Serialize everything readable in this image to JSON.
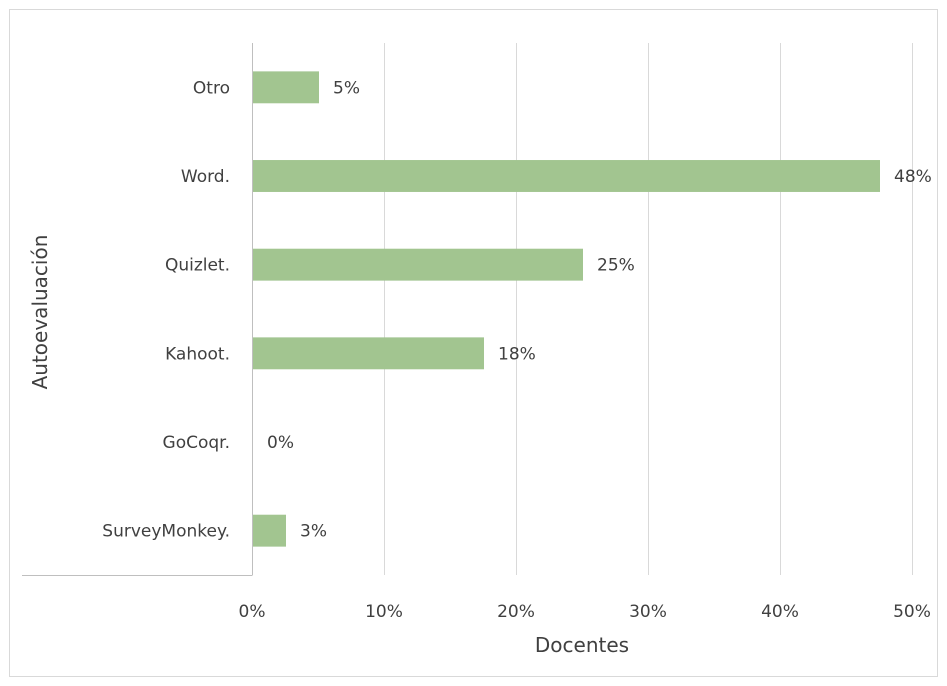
{
  "chart_data": {
    "type": "bar",
    "orientation": "horizontal",
    "categories": [
      "Otro",
      "Word.",
      "Quizlet.",
      "Kahoot.",
      "GoCoqr.",
      "SurveyMonkey."
    ],
    "values": [
      5,
      47.5,
      25,
      17.5,
      0,
      2.5
    ],
    "data_labels": [
      "5%",
      "48%",
      "25%",
      "18%",
      "0%",
      "3%"
    ],
    "xlabel": "Docentes",
    "ylabel": "Autoevaluación",
    "xlim": [
      0,
      50
    ],
    "xticks": [
      0,
      10,
      20,
      30,
      40,
      50
    ],
    "xtick_labels": [
      "0%",
      "10%",
      "20%",
      "30%",
      "40%",
      "50%"
    ],
    "bar_color": "#a2c590",
    "grid": true,
    "legend": "none"
  }
}
